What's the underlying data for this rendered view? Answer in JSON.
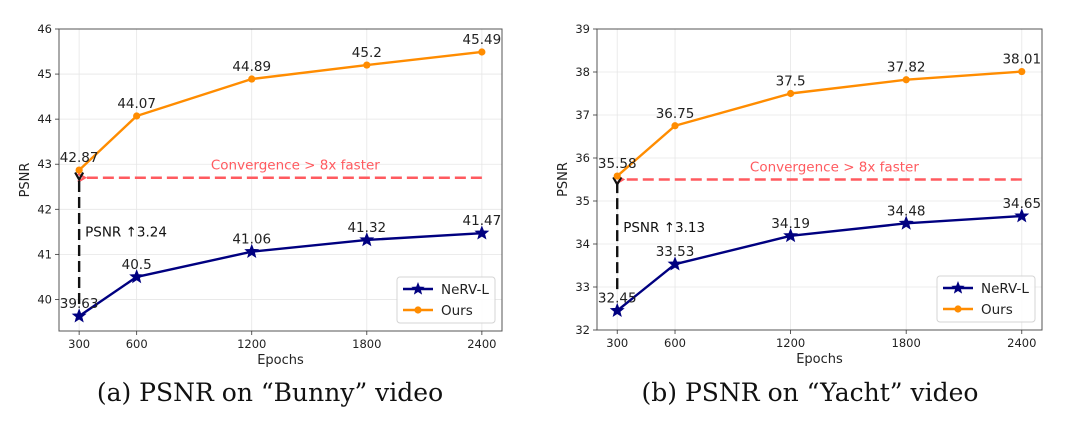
{
  "chart_data": [
    {
      "type": "line",
      "id": "a",
      "caption": "(a) PSNR on “Bunny” video",
      "xlabel": "Epochs",
      "ylabel": "PSNR",
      "x": [
        300,
        600,
        1200,
        1800,
        2400
      ],
      "xticks": [
        "300",
        "600",
        "1200",
        "1800",
        "2400"
      ],
      "yticks": [
        40,
        41,
        42,
        43,
        44,
        45,
        46
      ],
      "xlim": [
        195,
        2505
      ],
      "ylim": [
        39.3,
        46
      ],
      "grid": true,
      "legend": "lower-right",
      "series": [
        {
          "name": "NeRV-L",
          "color": "#000080",
          "marker": "star",
          "values": [
            39.63,
            40.5,
            41.06,
            41.32,
            41.47
          ],
          "labels": [
            "39.63",
            "40.5",
            "41.06",
            "41.32",
            "41.47"
          ]
        },
        {
          "name": "Ours",
          "color": "#ff8c00",
          "marker": "circle",
          "values": [
            42.87,
            44.07,
            44.89,
            45.2,
            45.49
          ],
          "labels": [
            "42.87",
            "44.07",
            "44.89",
            "45.2",
            "45.49"
          ]
        }
      ],
      "annotations": {
        "convergence": {
          "text": "Convergence > 8x faster",
          "color": "#ff5a5f",
          "y": 42.7,
          "from_x": 2400,
          "to_x": 330
        },
        "psnr_gain": {
          "text": "PSNR ↑3.24",
          "color": "#111111",
          "x": 300,
          "from_y": 39.9,
          "to_y": 42.75
        }
      }
    },
    {
      "type": "line",
      "id": "b",
      "caption": "(b) PSNR on “Yacht” video",
      "xlabel": "Epochs",
      "ylabel": "PSNR",
      "x": [
        300,
        600,
        1200,
        1800,
        2400
      ],
      "xticks": [
        "300",
        "600",
        "1200",
        "1800",
        "2400"
      ],
      "yticks": [
        32,
        33,
        34,
        35,
        36,
        37,
        38,
        39
      ],
      "xlim": [
        195,
        2505
      ],
      "ylim": [
        32,
        39
      ],
      "grid": true,
      "legend": "lower-right",
      "series": [
        {
          "name": "NeRV-L",
          "color": "#000080",
          "marker": "star",
          "values": [
            32.45,
            33.53,
            34.19,
            34.48,
            34.65
          ],
          "labels": [
            "32.45",
            "33.53",
            "34.19",
            "34.48",
            "34.65"
          ]
        },
        {
          "name": "Ours",
          "color": "#ff8c00",
          "marker": "circle",
          "values": [
            35.58,
            36.75,
            37.5,
            37.82,
            38.01
          ],
          "labels": [
            "35.58",
            "36.75",
            "37.5",
            "37.82",
            "38.01"
          ]
        }
      ],
      "annotations": {
        "convergence": {
          "text": "Convergence > 8x faster",
          "color": "#ff5a5f",
          "y": 35.5,
          "from_x": 2400,
          "to_x": 330
        },
        "psnr_gain": {
          "text": "PSNR ↑3.13",
          "color": "#111111",
          "x": 300,
          "from_y": 32.95,
          "to_y": 35.48
        }
      }
    }
  ]
}
